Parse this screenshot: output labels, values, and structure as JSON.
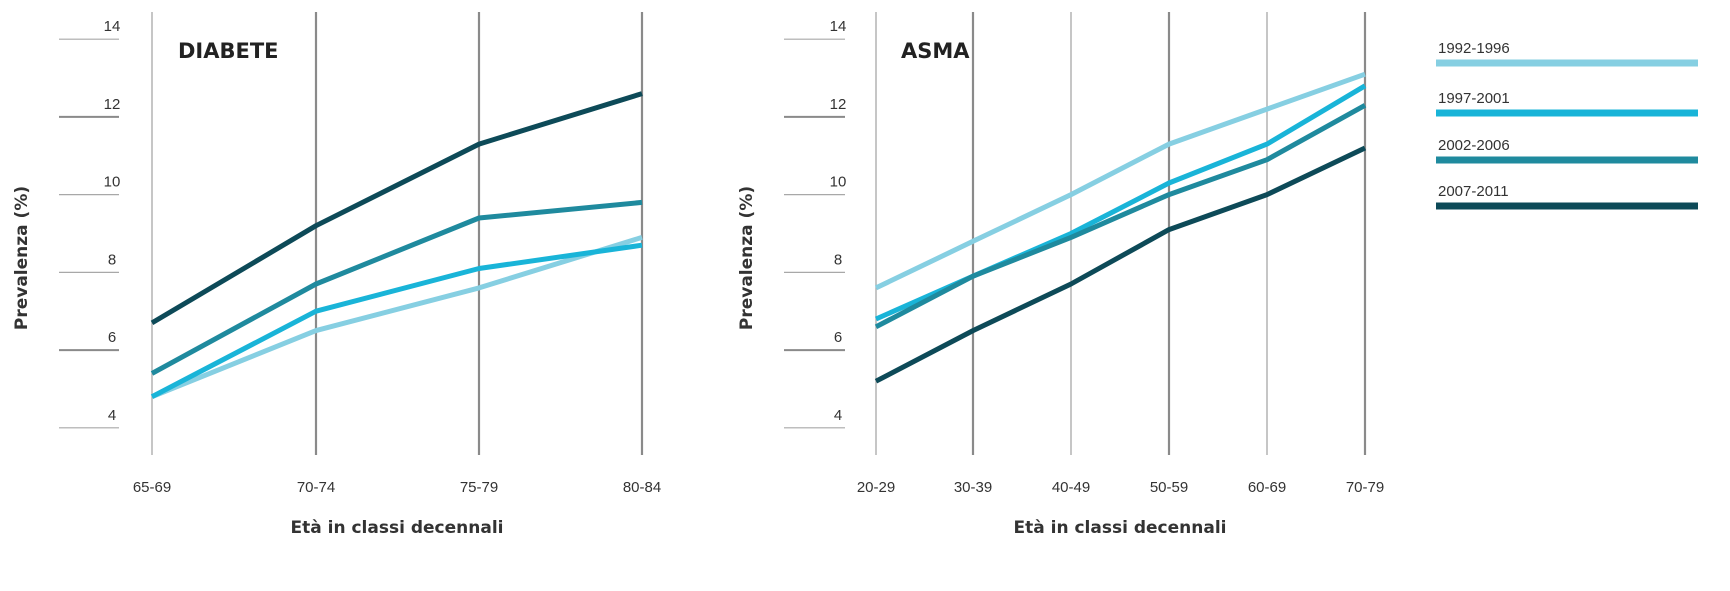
{
  "legend": [
    {
      "label": "1992-1996",
      "color": "#86cfe2"
    },
    {
      "label": "1997-2001",
      "color": "#19b4d8"
    },
    {
      "label": "2002-2006",
      "color": "#1f8a9e"
    },
    {
      "label": "2007-2011",
      "color": "#0d4a58"
    }
  ],
  "chart_data": [
    {
      "type": "line",
      "title": "DIABETE",
      "xlabel": "Età in classi decennali",
      "ylabel": "Prevalenza (%)",
      "categories": [
        "65-69",
        "70-74",
        "75-79",
        "80-84"
      ],
      "yticks": [
        4,
        6,
        8,
        10,
        12,
        14
      ],
      "ylim": [
        3.3,
        14.7
      ],
      "grid": "vertical",
      "series": [
        {
          "name": "1992-1996",
          "values": [
            4.8,
            6.5,
            7.6,
            8.9
          ]
        },
        {
          "name": "1997-2001",
          "values": [
            4.8,
            7.0,
            8.1,
            8.7
          ]
        },
        {
          "name": "2002-2006",
          "values": [
            5.4,
            7.7,
            9.4,
            9.8
          ]
        },
        {
          "name": "2007-2011",
          "values": [
            6.7,
            9.2,
            11.3,
            12.6
          ]
        }
      ]
    },
    {
      "type": "line",
      "title": "ASMA",
      "xlabel": "Età in classi decennali",
      "ylabel": "Prevalenza (%)",
      "categories": [
        "20-29",
        "30-39",
        "40-49",
        "50-59",
        "60-69",
        "70-79"
      ],
      "yticks": [
        4,
        6,
        8,
        10,
        12,
        14
      ],
      "ylim": [
        3.3,
        14.7
      ],
      "grid": "vertical",
      "series": [
        {
          "name": "1992-1996",
          "values": [
            7.6,
            8.8,
            10.0,
            11.3,
            12.2,
            13.1
          ]
        },
        {
          "name": "1997-2001",
          "values": [
            6.8,
            7.9,
            9.0,
            10.3,
            11.3,
            12.8
          ]
        },
        {
          "name": "2002-2006",
          "values": [
            6.6,
            7.9,
            8.9,
            10.0,
            10.9,
            12.3
          ]
        },
        {
          "name": "2007-2011",
          "values": [
            5.2,
            6.5,
            7.7,
            9.1,
            10.0,
            11.2
          ]
        }
      ]
    }
  ]
}
